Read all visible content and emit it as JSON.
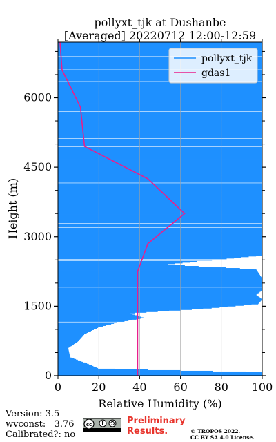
{
  "chart_data": {
    "type": "line",
    "title_line1": "pollyxt_tjk at Dushanbe",
    "title_line2": "[Averaged] 20220712 12:00-12:59",
    "xlabel": "Relative Humidity (%)",
    "ylabel": "Height (m)",
    "xlim": [
      0,
      100
    ],
    "ylim": [
      0,
      7200
    ],
    "xticks": [
      0,
      20,
      40,
      60,
      80,
      100
    ],
    "xtick_labels": [
      "0",
      "20",
      "40",
      "60",
      "80",
      "100"
    ],
    "yticks": [
      0,
      1500,
      3000,
      4500,
      6000
    ],
    "ytick_labels": [
      "0",
      "1500",
      "3000",
      "4500",
      "6000"
    ],
    "grid": "vertical",
    "legend_position": "top-right",
    "series": [
      {
        "name": "pollyxt_tjk",
        "color": "#1e90ff",
        "profile": [
          [
            0,
            100
          ],
          [
            75,
            100
          ],
          [
            150,
            20
          ],
          [
            250,
            15
          ],
          [
            400,
            6
          ],
          [
            600,
            5
          ],
          [
            750,
            10
          ],
          [
            900,
            13
          ],
          [
            1050,
            20
          ],
          [
            1150,
            29
          ],
          [
            1250,
            42
          ],
          [
            1350,
            35
          ],
          [
            1450,
            72
          ],
          [
            1500,
            85
          ],
          [
            1550,
            98
          ],
          [
            1650,
            100
          ],
          [
            1750,
            97
          ],
          [
            1850,
            100
          ],
          [
            1950,
            100
          ],
          [
            2100,
            100
          ],
          [
            2300,
            97
          ],
          [
            2400,
            52
          ],
          [
            2600,
            100
          ],
          [
            2800,
            100
          ],
          [
            3000,
            100
          ],
          [
            3200,
            100
          ],
          [
            3400,
            100
          ],
          [
            3600,
            100
          ],
          [
            3800,
            100
          ],
          [
            4000,
            100
          ],
          [
            4300,
            100
          ],
          [
            4600,
            100
          ],
          [
            5000,
            100
          ],
          [
            5500,
            100
          ],
          [
            6000,
            100
          ],
          [
            6500,
            100
          ],
          [
            7000,
            100
          ]
        ]
      },
      {
        "name": "gdas1",
        "color": "#e91e8c",
        "x": [
          39,
          39,
          39,
          44,
          62,
          44,
          13,
          11,
          2,
          1
        ],
        "y": [
          0,
          1000,
          2250,
          2850,
          3500,
          4250,
          4950,
          5800,
          6600,
          7200
        ]
      }
    ]
  },
  "footer": {
    "version": "Version: 3.5",
    "wvconst": "wvconst:   3.76",
    "calibrated": "Calibrated?: no",
    "preliminary_line1": "Preliminary",
    "preliminary_line2": "Results.",
    "copyright_line1": "© TROPOS 2022.",
    "copyright_line2": "CC BY SA 4.0 License."
  }
}
